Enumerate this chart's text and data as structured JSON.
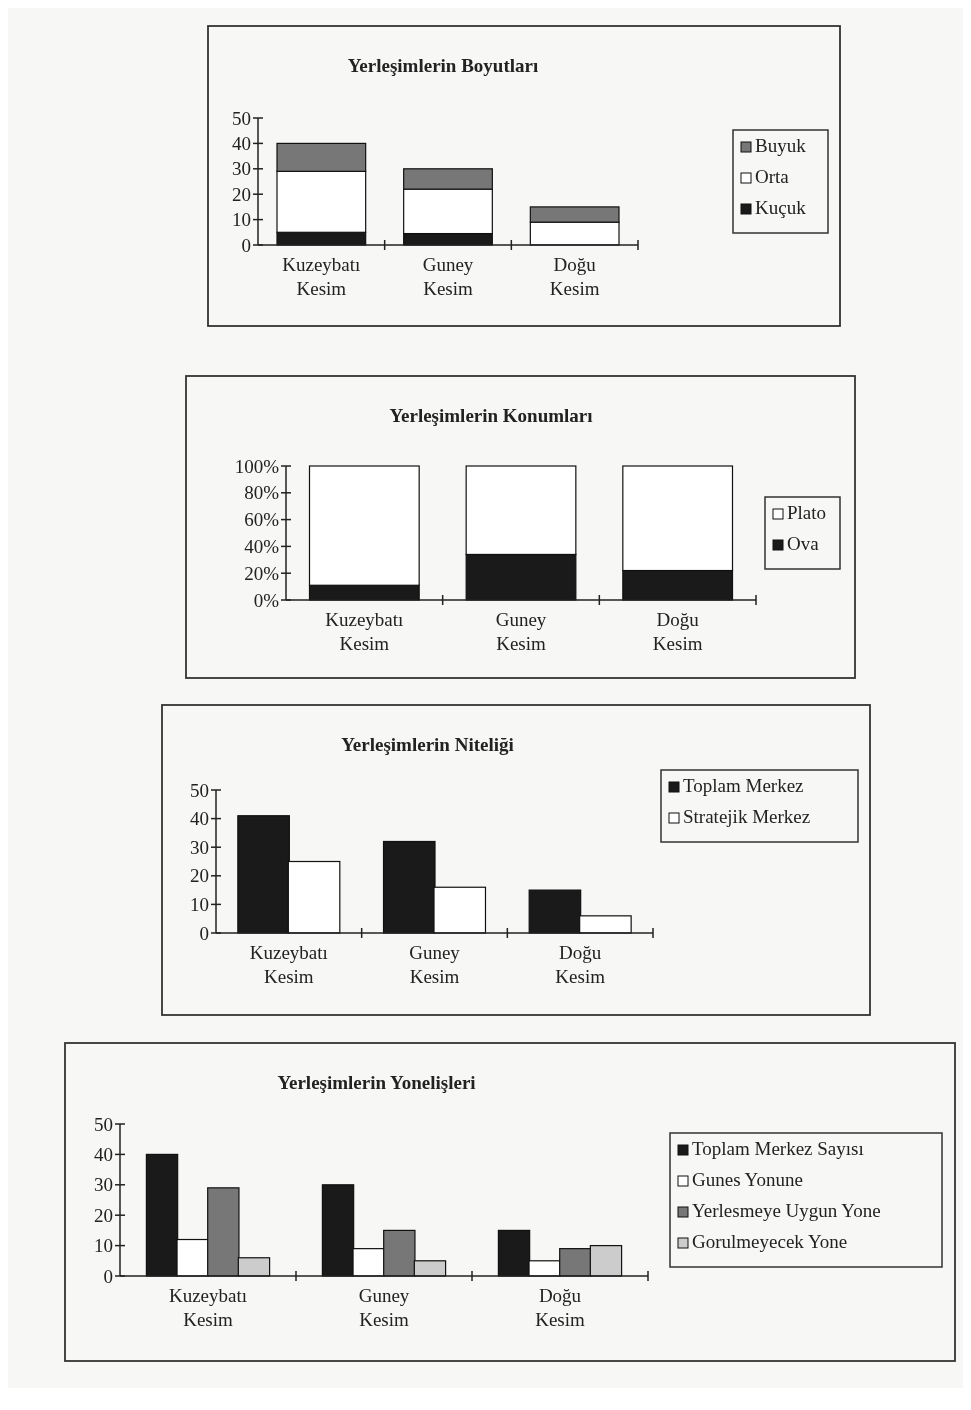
{
  "chart_data": [
    {
      "type": "bar",
      "title": "Yerleşimlerin Boyutları",
      "categories": [
        "Kuzeybatı Kesim",
        "Guney Kesim",
        "Doğu Kesim"
      ],
      "stacked": true,
      "series": [
        {
          "name": "Kuçuk",
          "color": "#1a1a1a",
          "values": [
            5,
            4.5,
            0
          ]
        },
        {
          "name": "Orta",
          "color": "#ffffff",
          "values": [
            24,
            17.5,
            9
          ]
        },
        {
          "name": "Buyuk",
          "color": "#777777",
          "values": [
            11,
            8,
            6
          ]
        }
      ],
      "ylim": [
        0,
        50
      ],
      "yticks": [
        0,
        10,
        20,
        30,
        40,
        50
      ],
      "legend": "right",
      "grid": false
    },
    {
      "type": "bar",
      "title": "Yerleşimlerin Konumları",
      "categories": [
        "Kuzeybatı Kesim",
        "Guney Kesim",
        "Doğu Kesim"
      ],
      "stacked": true,
      "series": [
        {
          "name": "Ova",
          "color": "#1a1a1a",
          "values": [
            11,
            34,
            22
          ]
        },
        {
          "name": "Plato",
          "color": "#ffffff",
          "values": [
            89,
            66,
            78
          ]
        }
      ],
      "ylim": [
        0,
        100
      ],
      "yticks": [
        {
          "value": 0,
          "label": "0%"
        },
        {
          "value": 20,
          "label": "20%"
        },
        {
          "value": 40,
          "label": "40%"
        },
        {
          "value": 60,
          "label": "60%"
        },
        {
          "value": 80,
          "label": "80%"
        },
        {
          "value": 100,
          "label": "100%"
        }
      ],
      "legend": "right",
      "grid": false
    },
    {
      "type": "bar",
      "title": "Yerleşimlerin Niteliği",
      "categories": [
        "Kuzeybatı Kesim",
        "Guney Kesim",
        "Doğu Kesim"
      ],
      "series": [
        {
          "name": "Toplam Merkez",
          "color": "#1a1a1a",
          "values": [
            41,
            32,
            15
          ]
        },
        {
          "name": "Stratejik Merkez",
          "color": "#ffffff",
          "values": [
            25,
            16,
            6
          ]
        }
      ],
      "ylim": [
        0,
        50
      ],
      "yticks": [
        0,
        10,
        20,
        30,
        40,
        50
      ],
      "legend": "top right",
      "grid": false
    },
    {
      "type": "bar",
      "title": "Yerleşimlerin Yonelişleri",
      "categories": [
        "Kuzeybatı Kesim",
        "Guney Kesim",
        "Doğu Kesim"
      ],
      "series": [
        {
          "name": "Toplam Merkez Sayısı",
          "color": "#1a1a1a",
          "values": [
            40,
            30,
            15
          ]
        },
        {
          "name": "Gunes Yonune",
          "color": "#ffffff",
          "values": [
            12,
            9,
            5
          ]
        },
        {
          "name": "Yerlesmeye Uygun Yone",
          "color": "#777777",
          "values": [
            29,
            15,
            9
          ]
        },
        {
          "name": "Gorulmeyecek Yone",
          "color": "#cccccc",
          "values": [
            6,
            5,
            10
          ]
        }
      ],
      "ylim": [
        0,
        50
      ],
      "yticks": [
        0,
        10,
        20,
        30,
        40,
        50
      ],
      "legend": "right",
      "grid": false
    }
  ]
}
